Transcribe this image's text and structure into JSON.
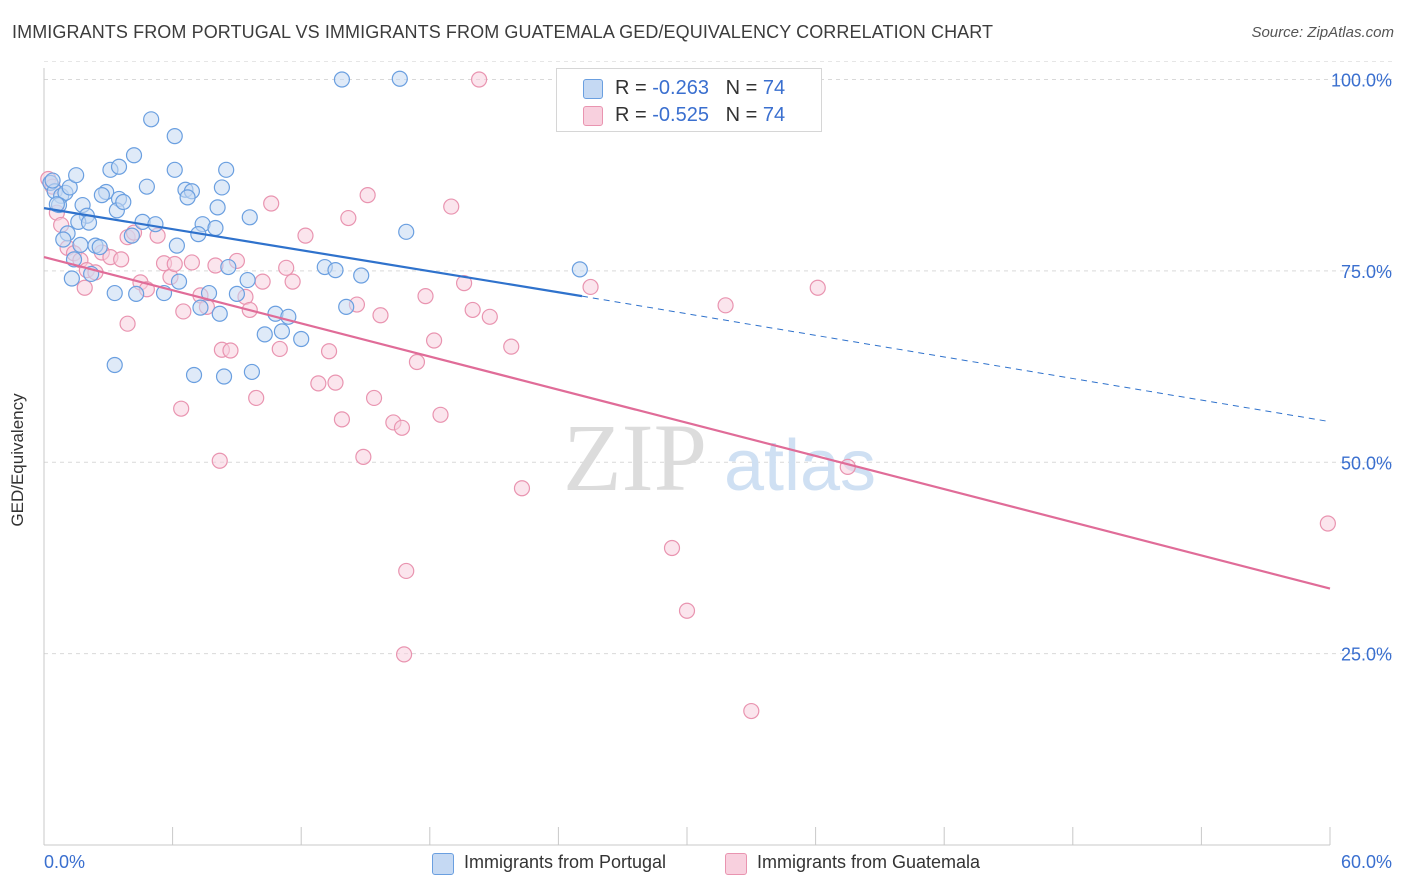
{
  "header": {
    "title": "IMMIGRANTS FROM PORTUGAL VS IMMIGRANTS FROM GUATEMALA GED/EQUIVALENCY CORRELATION CHART",
    "source": "Source: ZipAtlas.com"
  },
  "legend": {
    "r_label": "R =",
    "n_label": "N =",
    "rows": [
      {
        "r": "-0.263",
        "n": "74"
      },
      {
        "r": "-0.525",
        "n": "74"
      }
    ]
  },
  "bottom_legend": {
    "items": [
      "Immigrants from Portugal",
      "Immigrants from Guatemala"
    ]
  },
  "colors": {
    "portugal": "#6a9fe0",
    "portugal_fill": "#c5d9f3",
    "portugal_line": "#2f72cc",
    "guatemala": "#e994b0",
    "guatemala_fill": "#f8d0de",
    "guatemala_line": "#e06c98",
    "tick_text": "#3a6fcf"
  },
  "watermark": {
    "zip": "ZIP",
    "atlas": "atlas"
  },
  "chart_data": {
    "type": "scatter",
    "title": "IMMIGRANTS FROM PORTUGAL VS IMMIGRANTS FROM GUATEMALA GED/EQUIVALENCY CORRELATION CHART",
    "xlabel": "",
    "ylabel": "GED/Equivalency",
    "xlim": [
      0,
      60
    ],
    "ylim": [
      0,
      105
    ],
    "x_tick_labels": [
      "0.0%",
      "60.0%"
    ],
    "y_ticks": [
      25,
      50,
      75,
      100
    ],
    "y_tick_labels": [
      "25.0%",
      "50.0%",
      "75.0%",
      "100.0%"
    ],
    "grid": true,
    "legend_position": "top-center",
    "series": [
      {
        "name": "Immigrants from Portugal",
        "r": -0.263,
        "n": 74,
        "trend": {
          "x0": 0,
          "y0": 83.2,
          "x1": 25.1,
          "y1": 71.7,
          "dash_to_x": 60,
          "dash_to_y": 55.3
        },
        "points": [
          [
            0.3,
            86.5
          ],
          [
            0.5,
            85.4
          ],
          [
            0.8,
            84.8
          ],
          [
            1.0,
            85.2
          ],
          [
            0.7,
            83.6
          ],
          [
            1.2,
            85.9
          ],
          [
            1.5,
            87.5
          ],
          [
            1.8,
            83.6
          ],
          [
            2.0,
            82.2
          ],
          [
            1.1,
            79.9
          ],
          [
            1.6,
            81.4
          ],
          [
            0.9,
            79.1
          ],
          [
            2.4,
            78.3
          ],
          [
            2.6,
            78.1
          ],
          [
            1.4,
            76.5
          ],
          [
            2.2,
            74.6
          ],
          [
            1.3,
            74.0
          ],
          [
            3.1,
            88.2
          ],
          [
            2.9,
            85.3
          ],
          [
            3.5,
            84.4
          ],
          [
            3.4,
            82.9
          ],
          [
            3.7,
            84.0
          ],
          [
            4.2,
            90.1
          ],
          [
            4.8,
            86.0
          ],
          [
            4.6,
            81.4
          ],
          [
            5.2,
            81.1
          ],
          [
            4.1,
            79.6
          ],
          [
            6.1,
            88.2
          ],
          [
            6.6,
            85.6
          ],
          [
            6.9,
            85.4
          ],
          [
            6.7,
            84.6
          ],
          [
            6.2,
            78.3
          ],
          [
            7.4,
            81.1
          ],
          [
            7.2,
            79.8
          ],
          [
            8.1,
            83.3
          ],
          [
            8.3,
            85.9
          ],
          [
            8.5,
            88.2
          ],
          [
            8.0,
            80.6
          ],
          [
            8.6,
            75.5
          ],
          [
            9.0,
            72.0
          ],
          [
            7.7,
            72.1
          ],
          [
            9.6,
            82.0
          ],
          [
            9.5,
            73.8
          ],
          [
            10.3,
            66.7
          ],
          [
            11.1,
            67.1
          ],
          [
            12.0,
            66.1
          ],
          [
            10.8,
            69.4
          ],
          [
            11.4,
            69.0
          ],
          [
            13.1,
            75.5
          ],
          [
            13.6,
            75.1
          ],
          [
            14.1,
            70.3
          ],
          [
            14.8,
            74.4
          ],
          [
            3.3,
            72.1
          ],
          [
            3.3,
            62.7
          ],
          [
            5.6,
            72.1
          ],
          [
            7.3,
            70.2
          ],
          [
            8.2,
            69.4
          ],
          [
            9.7,
            61.8
          ],
          [
            7.0,
            61.4
          ],
          [
            8.4,
            61.2
          ],
          [
            16.9,
            80.1
          ],
          [
            25.0,
            75.2
          ],
          [
            13.9,
            100.0
          ],
          [
            16.6,
            100.1
          ],
          [
            4.3,
            72.0
          ],
          [
            6.3,
            73.6
          ],
          [
            5.0,
            94.8
          ],
          [
            6.1,
            92.6
          ],
          [
            3.5,
            88.6
          ],
          [
            2.7,
            84.9
          ],
          [
            0.4,
            86.8
          ],
          [
            2.1,
            81.3
          ],
          [
            1.7,
            78.4
          ],
          [
            0.6,
            83.7
          ]
        ]
      },
      {
        "name": "Immigrants from Guatemala",
        "r": -0.525,
        "n": 74,
        "trend": {
          "x0": 0,
          "y0": 76.8,
          "x1": 60,
          "y1": 33.5
        },
        "points": [
          [
            0.2,
            87.0
          ],
          [
            0.4,
            86.0
          ],
          [
            0.6,
            82.6
          ],
          [
            0.8,
            81.0
          ],
          [
            1.1,
            78.0
          ],
          [
            1.4,
            77.3
          ],
          [
            1.7,
            76.4
          ],
          [
            2.0,
            75.1
          ],
          [
            2.4,
            74.8
          ],
          [
            2.7,
            77.4
          ],
          [
            3.1,
            76.8
          ],
          [
            3.6,
            76.5
          ],
          [
            3.9,
            79.4
          ],
          [
            4.2,
            80.0
          ],
          [
            4.5,
            73.5
          ],
          [
            4.8,
            72.6
          ],
          [
            5.3,
            79.6
          ],
          [
            5.6,
            76.0
          ],
          [
            5.9,
            74.2
          ],
          [
            6.1,
            75.9
          ],
          [
            6.5,
            69.7
          ],
          [
            6.9,
            76.1
          ],
          [
            7.3,
            71.8
          ],
          [
            7.6,
            70.3
          ],
          [
            8.0,
            75.7
          ],
          [
            8.3,
            64.7
          ],
          [
            8.7,
            64.6
          ],
          [
            9.0,
            76.3
          ],
          [
            9.4,
            71.6
          ],
          [
            9.6,
            69.9
          ],
          [
            9.9,
            58.4
          ],
          [
            10.2,
            73.6
          ],
          [
            10.6,
            83.8
          ],
          [
            11.0,
            64.8
          ],
          [
            11.3,
            75.4
          ],
          [
            11.6,
            73.6
          ],
          [
            12.2,
            79.6
          ],
          [
            12.8,
            60.3
          ],
          [
            13.3,
            64.5
          ],
          [
            13.6,
            60.4
          ],
          [
            13.9,
            55.6
          ],
          [
            14.2,
            81.9
          ],
          [
            14.6,
            70.6
          ],
          [
            14.9,
            50.7
          ],
          [
            15.1,
            84.9
          ],
          [
            15.4,
            58.4
          ],
          [
            15.7,
            69.2
          ],
          [
            16.3,
            55.2
          ],
          [
            16.7,
            54.5
          ],
          [
            17.4,
            63.1
          ],
          [
            17.8,
            71.7
          ],
          [
            18.2,
            65.9
          ],
          [
            18.5,
            56.2
          ],
          [
            19.0,
            83.4
          ],
          [
            19.6,
            73.4
          ],
          [
            20.0,
            69.9
          ],
          [
            20.8,
            69.0
          ],
          [
            21.8,
            65.1
          ],
          [
            22.3,
            46.6
          ],
          [
            25.5,
            72.9
          ],
          [
            29.3,
            38.8
          ],
          [
            30.0,
            30.6
          ],
          [
            31.8,
            70.5
          ],
          [
            33.0,
            17.5
          ],
          [
            36.1,
            72.8
          ],
          [
            37.5,
            49.4
          ],
          [
            16.9,
            35.8
          ],
          [
            16.8,
            24.9
          ],
          [
            20.3,
            100.0
          ],
          [
            8.2,
            50.2
          ],
          [
            6.4,
            57.0
          ],
          [
            3.9,
            68.1
          ],
          [
            1.9,
            72.8
          ],
          [
            59.9,
            42.0
          ]
        ]
      }
    ]
  }
}
